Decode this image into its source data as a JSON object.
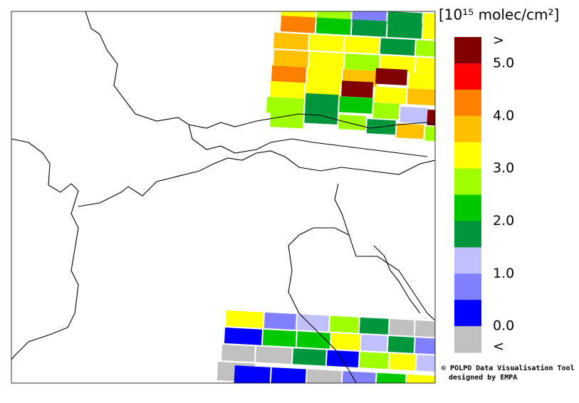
{
  "legend": {
    "unit": "[10¹⁵ molec/cm²]",
    "labels": [
      ">",
      "5.0",
      "4.0",
      "3.0",
      "2.0",
      "1.0",
      "0.0",
      "<"
    ],
    "colors": [
      "#800000",
      "#ff0000",
      "#ff8000",
      "#ffc000",
      "#ffff00",
      "#a0ff00",
      "#00c800",
      "#00963c",
      "#c0c0ff",
      "#8080ff",
      "#0000ff",
      "#c0c0c0"
    ]
  },
  "credits": [
    "© POLPO Data Visualisation Tool",
    "designed by EMPA"
  ]
}
